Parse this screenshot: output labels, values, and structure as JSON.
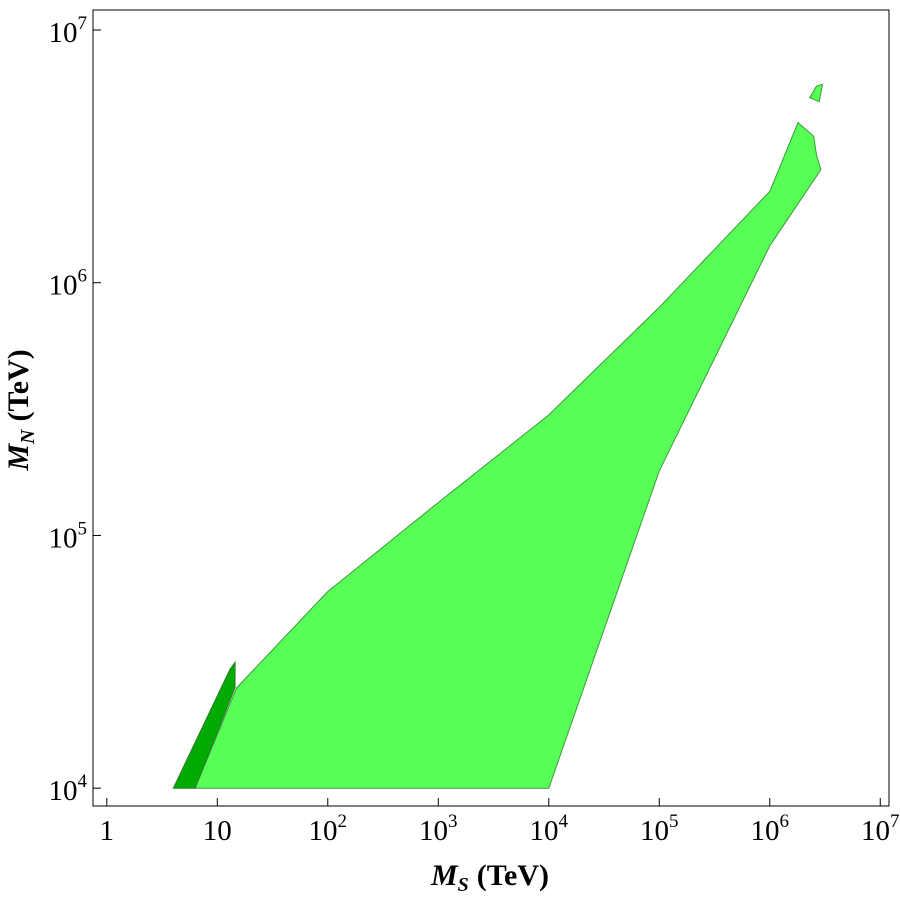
{
  "chart_data": {
    "type": "area",
    "title": "",
    "xlabel": {
      "symbol": "M",
      "subscript": "S",
      "unit": "(TeV)"
    },
    "ylabel": {
      "symbol": "M",
      "subscript": "N",
      "unit": "(TeV)"
    },
    "x_scale": "log",
    "y_scale": "log",
    "xlim": [
      0.75,
      12000000
    ],
    "ylim": [
      8500,
      12000000
    ],
    "grid": false,
    "x_ticks": [
      {
        "value": 1,
        "base": "1",
        "exp": ""
      },
      {
        "value": 10,
        "base": "10",
        "exp": ""
      },
      {
        "value": 100,
        "base": "10",
        "exp": "2"
      },
      {
        "value": 1000,
        "base": "10",
        "exp": "3"
      },
      {
        "value": 10000,
        "base": "10",
        "exp": "4"
      },
      {
        "value": 100000,
        "base": "10",
        "exp": "5"
      },
      {
        "value": 1000000,
        "base": "10",
        "exp": "6"
      },
      {
        "value": 10000000,
        "base": "10",
        "exp": "7"
      }
    ],
    "y_ticks": [
      {
        "value": 10000,
        "base": "10",
        "exp": "4"
      },
      {
        "value": 100000,
        "base": "10",
        "exp": "5"
      },
      {
        "value": 1000000,
        "base": "10",
        "exp": "6"
      },
      {
        "value": 10000000,
        "base": "10",
        "exp": "7"
      }
    ],
    "regions": [
      {
        "color": "#57ff57",
        "stroke": "#3c9a3c",
        "points": [
          [
            6.3,
            10000
          ],
          [
            15,
            25000
          ],
          [
            100,
            60000
          ],
          [
            1000,
            135000
          ],
          [
            10000,
            300000
          ],
          [
            100000,
            800000
          ],
          [
            1000000,
            2300000
          ],
          [
            1800000,
            4300000
          ],
          [
            2500000,
            3800000
          ],
          [
            2650000,
            3200000
          ],
          [
            2900000,
            2800000
          ],
          [
            1000000,
            1400000
          ],
          [
            100000,
            180000
          ],
          [
            10000,
            10000
          ]
        ]
      },
      {
        "color": "#00aa00",
        "stroke": "#2f7d2f",
        "points": [
          [
            4.0,
            10000
          ],
          [
            13.0,
            29500
          ],
          [
            14.5,
            31500
          ],
          [
            14.5,
            25000
          ],
          [
            6.3,
            10000
          ]
        ]
      },
      {
        "color": "#57ff57",
        "stroke": "#3c9a3c",
        "points": [
          [
            2300000,
            5400000
          ],
          [
            2650000,
            6000000
          ],
          [
            3000000,
            6100000
          ],
          [
            2800000,
            5200000
          ]
        ]
      }
    ]
  }
}
